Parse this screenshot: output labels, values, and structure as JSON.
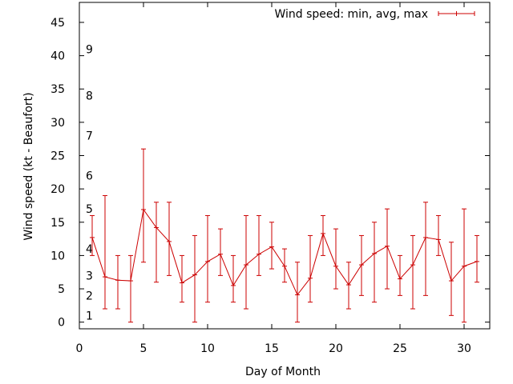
{
  "chart_data": {
    "type": "line",
    "title": "",
    "xlabel": "Day of Month",
    "ylabel": "Wind speed (kt - Beaufort)",
    "xlim": [
      0,
      32
    ],
    "ylim": [
      -1,
      48
    ],
    "x_ticks": [
      0,
      5,
      10,
      15,
      20,
      25,
      30
    ],
    "y_ticks": [
      0,
      5,
      10,
      15,
      20,
      25,
      30,
      35,
      40,
      45
    ],
    "grid": false,
    "legend": "top-right",
    "series_color": "#cc0000",
    "beaufort_labels": [
      {
        "label": "1",
        "kt": 1
      },
      {
        "label": "2",
        "kt": 4
      },
      {
        "label": "3",
        "kt": 7
      },
      {
        "label": "4",
        "kt": 11
      },
      {
        "label": "5",
        "kt": 17
      },
      {
        "label": "6",
        "kt": 22
      },
      {
        "label": "7",
        "kt": 28
      },
      {
        "label": "8",
        "kt": 34
      },
      {
        "label": "9",
        "kt": 41
      }
    ],
    "series": [
      {
        "name": "Wind speed: min, avg, max",
        "x": [
          1,
          2,
          3,
          4,
          5,
          6,
          7,
          8,
          9,
          10,
          11,
          12,
          13,
          14,
          15,
          16,
          17,
          18,
          19,
          20,
          21,
          22,
          23,
          24,
          25,
          26,
          27,
          28,
          29,
          30,
          31
        ],
        "avg": [
          12.7,
          6.8,
          6.3,
          6.2,
          16.9,
          14.2,
          12.1,
          5.9,
          7.1,
          9.1,
          10.2,
          5.5,
          8.6,
          10.2,
          11.3,
          8.4,
          4.1,
          6.6,
          13.3,
          8.4,
          5.6,
          8.6,
          10.3,
          11.4,
          6.5,
          8.6,
          12.7,
          12.4,
          6.2,
          8.4,
          9.1
        ],
        "min": [
          10,
          2,
          2,
          0,
          9,
          6,
          7,
          3,
          0,
          3,
          7,
          3,
          2,
          7,
          8,
          6,
          0,
          3,
          10,
          5,
          2,
          4,
          3,
          5,
          4,
          2,
          4,
          10,
          1,
          0,
          6
        ],
        "max": [
          16,
          19,
          10,
          10,
          26,
          18,
          18,
          10,
          13,
          16,
          14,
          10,
          16,
          16,
          15,
          11,
          9,
          13,
          16,
          14,
          9,
          13,
          15,
          17,
          10,
          13,
          18,
          16,
          12,
          17,
          13
        ]
      }
    ]
  }
}
